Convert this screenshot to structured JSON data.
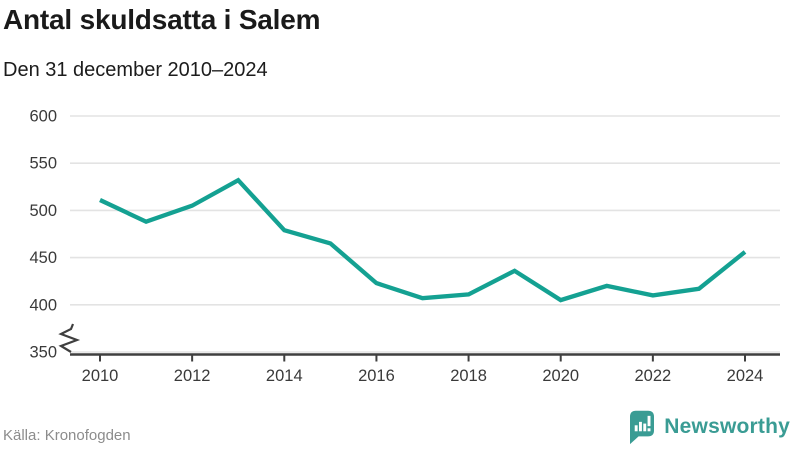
{
  "header": {
    "title": "Antal skuldsatta i Salem",
    "subtitle": "Den 31 december 2010–2024"
  },
  "footer": {
    "source": "Källa: Kronofogden",
    "brand": "Newsworthy"
  },
  "colors": {
    "line": "#14a192",
    "brand": "#3a9c94",
    "grid": "#e3e3e3",
    "axis": "#3f3f3f",
    "tick_text": "#3a3a3a",
    "title_text": "#1a1a1a",
    "muted_text": "#8c8c8c"
  },
  "chart_data": {
    "type": "line",
    "title": "Antal skuldsatta i Salem",
    "subtitle": "Den 31 december 2010–2024",
    "series_name": "Antal skuldsatta",
    "x": [
      2010,
      2011,
      2012,
      2013,
      2014,
      2015,
      2016,
      2017,
      2018,
      2019,
      2020,
      2021,
      2022,
      2023,
      2024
    ],
    "values": [
      511,
      488,
      505,
      532,
      479,
      465,
      423,
      407,
      411,
      436,
      405,
      420,
      410,
      417,
      456
    ],
    "xticks": [
      2010,
      2012,
      2014,
      2016,
      2018,
      2020,
      2022,
      2024
    ],
    "yticks": [
      350,
      400,
      450,
      500,
      550,
      600
    ],
    "ylim": [
      350,
      600
    ],
    "axis_break_at_350": true,
    "grid": "horizontal",
    "legend": "none",
    "xlabel": "",
    "ylabel": "",
    "source": "Källa: Kronofogden"
  }
}
